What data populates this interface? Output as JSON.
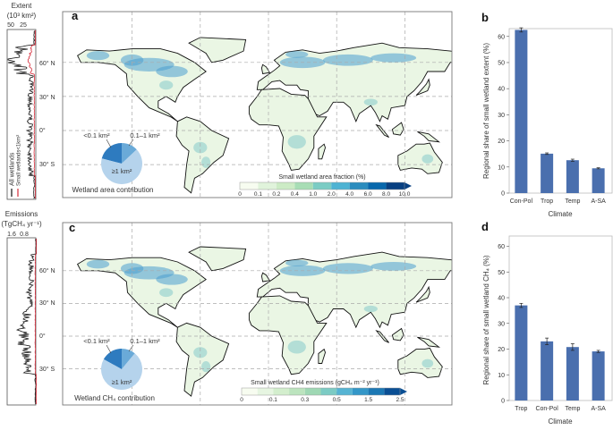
{
  "panels": {
    "a": "a",
    "b": "b",
    "c": "c",
    "d": "d"
  },
  "profile_extent": {
    "title": "Extent",
    "unit": "(10³ km²)",
    "ticks": [
      "50",
      "25"
    ],
    "legend": [
      "All wetlands",
      "Small wetlands<1km²"
    ],
    "series_colors": {
      "all": "#111111",
      "small": "#d62b3a"
    }
  },
  "profile_emissions": {
    "title": "Emissions",
    "unit": "(TgCH₄ yr⁻¹)",
    "ticks": [
      "1.6",
      "0.8"
    ]
  },
  "lat_labels": [
    "60° N",
    "30° N",
    "0°",
    "30° S"
  ],
  "map_a": {
    "colorbar_title": "Small wetland area fraction (%)",
    "colorbar_ticks": [
      "0",
      "0.1",
      "0.2",
      "0.4",
      "1.0",
      "2.0",
      "4.0",
      "6.0",
      "8.0",
      "10.0"
    ],
    "colorbar_colors": [
      "#f7fcf0",
      "#e0f3db",
      "#ccebc5",
      "#a8ddb5",
      "#7bccc4",
      "#4eb3d3",
      "#2b8cbe",
      "#0868ac",
      "#084081"
    ],
    "pie": {
      "caption": "Wetland area contribution",
      "slices": [
        {
          "label": "<0.1 km²",
          "value": 21,
          "color": "#2e7bbf"
        },
        {
          "label": "0.1–1 km²",
          "value": 13,
          "color": "#6aaad8"
        },
        {
          "label": "≥1 km²",
          "value": 66,
          "color": "#b5d3ec"
        }
      ]
    }
  },
  "map_c": {
    "colorbar_title": "Small wetland CH4 emissions (gCH₄ m⁻² yr⁻¹)",
    "colorbar_ticks": [
      "0",
      "0.1",
      "0.3",
      "0.5",
      "1.5",
      "2.5"
    ],
    "colorbar_colors": [
      "#f7fcf0",
      "#e6f5e1",
      "#d3eecd",
      "#bce4be",
      "#9fd8b4",
      "#7ccbc4",
      "#56b4d3",
      "#3497c8",
      "#1c78b4",
      "#0a4f94"
    ],
    "pie": {
      "caption": "Wetland CH₄ contribution",
      "slices": [
        {
          "label": "<0.1 km²",
          "value": 17,
          "color": "#2e7bbf"
        },
        {
          "label": "0.1–1 km²",
          "value": 11,
          "color": "#6aaad8"
        },
        {
          "label": "≥1 km²",
          "value": 72,
          "color": "#b5d3ec"
        }
      ]
    }
  },
  "chart_data": [
    {
      "panel": "b",
      "type": "bar",
      "categories": [
        "Con-Pol",
        "Trop",
        "Temp",
        "A-SA"
      ],
      "values": [
        62.5,
        15.1,
        12.6,
        9.5
      ],
      "errors": [
        0.8,
        0.3,
        0.4,
        0.2
      ],
      "xlabel": "Climate",
      "ylabel": "Regional share of small wetland extent (%)",
      "ylim": [
        0,
        63
      ],
      "yticks": [
        "0",
        "10",
        "20",
        "30",
        "40",
        "50",
        "60"
      ],
      "color": "#4a6fae",
      "grid": false
    },
    {
      "panel": "d",
      "type": "bar",
      "categories": [
        "Trop",
        "Con-Pol",
        "Temp",
        "A-SA"
      ],
      "values": [
        37.0,
        23.0,
        20.8,
        19.1
      ],
      "errors": [
        0.8,
        1.3,
        1.3,
        0.4
      ],
      "xlabel": "Climate",
      "ylabel": "Regional share of small wetland CH₄ (%)",
      "ylim": [
        0,
        64
      ],
      "yticks": [
        "0",
        "10",
        "20",
        "30",
        "40",
        "50",
        "60"
      ],
      "color": "#4a6fae",
      "grid": false
    }
  ]
}
